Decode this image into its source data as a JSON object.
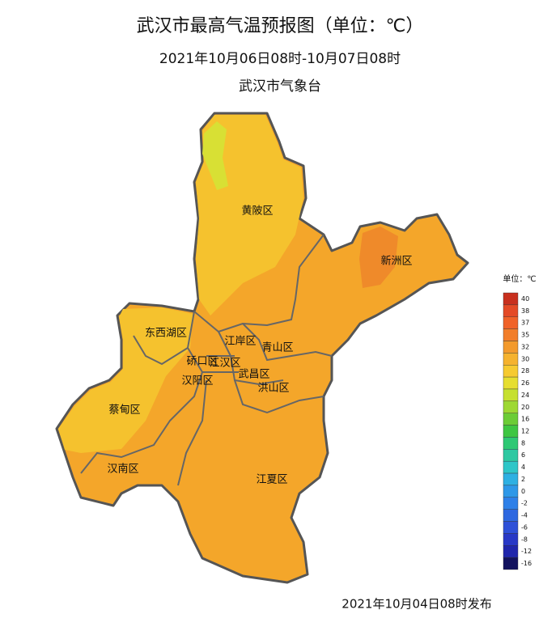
{
  "header": {
    "title": "武汉市最高气温预报图（单位：℃）",
    "period": "2021年10月06日08时-10月07日08时",
    "issuer": "武汉市气象台"
  },
  "districts": [
    {
      "label": "黄陂区"
    },
    {
      "label": "新洲区"
    },
    {
      "label": "东西湖区"
    },
    {
      "label": "江岸区"
    },
    {
      "label": "青山区"
    },
    {
      "label": "硚口区"
    },
    {
      "label": "江汉区"
    },
    {
      "label": "汉阳区"
    },
    {
      "label": "武昌区"
    },
    {
      "label": "洪山区"
    },
    {
      "label": "蔡甸区"
    },
    {
      "label": "汉南区"
    },
    {
      "label": "江夏区"
    }
  ],
  "legend": {
    "title": "单位：℃",
    "items": [
      {
        "value": 40,
        "color": "#c8301e"
      },
      {
        "value": 38,
        "color": "#e44a26"
      },
      {
        "value": 37,
        "color": "#f06228"
      },
      {
        "value": 35,
        "color": "#f27e2a"
      },
      {
        "value": 32,
        "color": "#f39a2c"
      },
      {
        "value": 30,
        "color": "#f5b22e"
      },
      {
        "value": 28,
        "color": "#f6ca30"
      },
      {
        "value": 26,
        "color": "#e6de30"
      },
      {
        "value": 24,
        "color": "#c6e030"
      },
      {
        "value": 20,
        "color": "#9ed832"
      },
      {
        "value": 16,
        "color": "#6ccc36"
      },
      {
        "value": 12,
        "color": "#3ec642"
      },
      {
        "value": 8,
        "color": "#2ec874"
      },
      {
        "value": 6,
        "color": "#2ec8a2"
      },
      {
        "value": 4,
        "color": "#2ec6c8"
      },
      {
        "value": 2,
        "color": "#2eb0e2"
      },
      {
        "value": 0,
        "color": "#2e98e8"
      },
      {
        "value": -2,
        "color": "#2e80e8"
      },
      {
        "value": -4,
        "color": "#2e68e0"
      },
      {
        "value": -6,
        "color": "#2e50d8"
      },
      {
        "value": -8,
        "color": "#2838c6"
      },
      {
        "value": -12,
        "color": "#2026ac"
      },
      {
        "value": -16,
        "color": "#12125e"
      }
    ]
  },
  "footer": "2021年10月04日08时发布"
}
